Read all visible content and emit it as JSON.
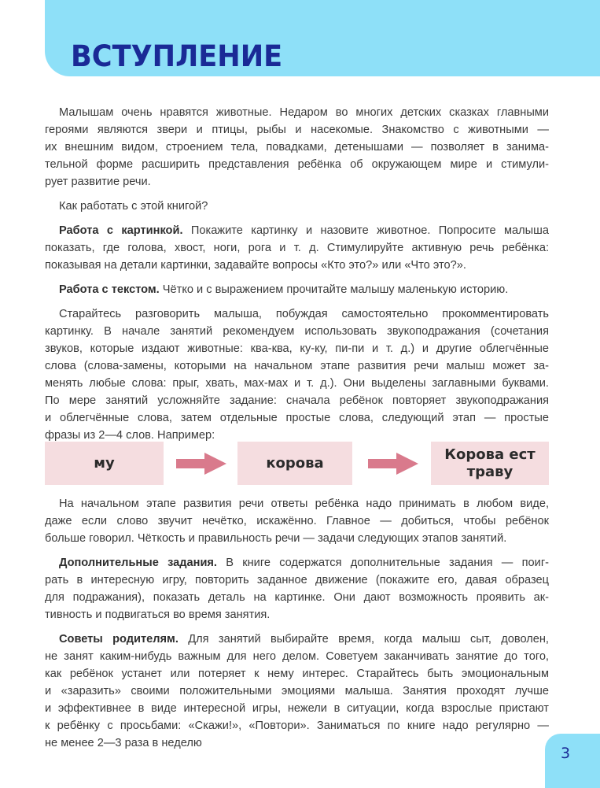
{
  "header": {
    "title": "ВСТУПЛЕНИЕ",
    "background_color": "#8ee0f8",
    "title_color": "#1a2a96"
  },
  "text_top": [
    {
      "lead": "",
      "lines": [
        "Малышам очень нравятся животные. Недаром во многих детских сказках главными",
        "героями являются звери и птицы, рыбы и насекомые. Знакомство с животными —",
        "их внешним видом, строением тела, повадками, детенышами — позволяет в занима-",
        "тельной форме расширить представления ребёнка об окружающем мире и стимули-",
        "рует развитие речи."
      ]
    },
    {
      "lead": "",
      "lines": [
        "Как работать с этой книгой?"
      ]
    },
    {
      "lead": "Работа с картинкой.",
      "lines": [
        " Покажите картинку и назовите животное. Попросите малыша",
        "показать, где голова, хвост, ноги, рога и т. д. Стимулируйте активную речь ребёнка:",
        "показывая на детали картинки, задавайте вопросы «Кто это?» или «Что это?»."
      ]
    },
    {
      "lead": "Работа с текстом.",
      "lines": [
        " Чётко и с выражением прочитайте малышу маленькую историю."
      ]
    },
    {
      "lead": "",
      "lines": [
        "Старайтесь разговорить малыша, побуждая самостоятельно прокомментировать",
        "картинку. В начале занятий рекомендуем использовать звукоподражания (сочетания",
        "звуков, которые издают животные: ква-ква, ку-ку, пи-пи и т. д.) и другие облегчённые",
        "слова (слова-замены, которыми на начальном этапе развития речи малыш может за-",
        "менять любые слова: прыг, хвать, мах-мах и т. д.). Они выделены заглавными буквами.",
        "По мере занятий усложняйте задание: сначала ребёнок повторяет звукоподражания",
        "и облегчённые слова, затем отдельные простые слова, следующий этап — простые",
        "фразы из 2—4 слов. Например:"
      ]
    }
  ],
  "example": {
    "steps": [
      "му",
      "корова",
      "Корова ест траву"
    ],
    "box_color": "#f5dde0",
    "arrow_color": "#d97a8c"
  },
  "text_bottom": [
    {
      "lead": "",
      "lines": [
        "На начальном этапе развития речи ответы ребёнка надо принимать в любом виде,",
        "даже если слово звучит нечётко, искажённо. Главное — добиться, чтобы ребёнок",
        "больше говорил. Чёткость и правильность речи — задачи следующих этапов занятий."
      ]
    },
    {
      "lead": "Дополнительные задания.",
      "lines": [
        " В книге содержатся дополнительные задания — поиг-",
        "рать в интересную игру, повторить заданное движение (покажите его, давая образец",
        "для подражания), показать деталь на картинке. Они дают возможность проявить ак-",
        "тивность и подвигаться во время занятия."
      ]
    },
    {
      "lead": "Советы родителям.",
      "lines": [
        " Для занятий выбирайте время, когда малыш сыт, доволен,",
        "не занят каким-нибудь важным для него делом. Советуем заканчивать занятие до того,",
        "как ребёнок устанет или потеряет к нему интерес. Старайтесь быть эмоциональным",
        "и «заразить» своими положительными эмоциями малыша. Занятия проходят лучше",
        "и эффективнее в виде интересной игры, нежели в ситуации, когда взрослые пристают",
        "к ребёнку с просьбами: «Скажи!», «Повтори». Заниматься по книге надо регулярно —",
        "не менее 2—3 раза в неделю"
      ]
    }
  ],
  "footer": {
    "page_number": "3"
  }
}
